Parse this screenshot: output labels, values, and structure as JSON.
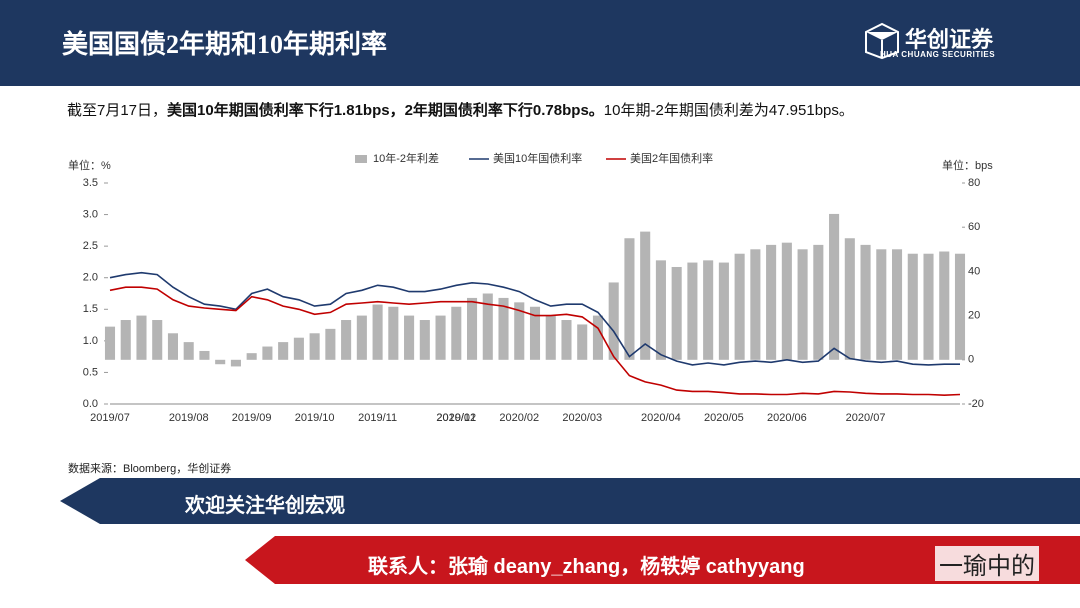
{
  "header": {
    "title": "美国国债2年期和10年期利率",
    "logo": "华创证券",
    "logo_en": "HUA CHUANG SECURITIES"
  },
  "summary": [
    "截至7月17日，",
    "美国10年期国债利率下行1.81bps，2年期国债利率下行0.78bps。",
    "10年期-2年期国债利差为47.951bps。"
  ],
  "chart_data": {
    "type": "bar-line",
    "ylabel": "单位：%",
    "y2label": "单位：bps",
    "categories": [
      "2019/07",
      null,
      null,
      null,
      null,
      "2019/08",
      null,
      null,
      null,
      "2019/09",
      null,
      null,
      null,
      "2019/10",
      null,
      null,
      null,
      "2019/11",
      null,
      null,
      null,
      null,
      "2020/01",
      null,
      null,
      null,
      "2020/02",
      null,
      null,
      null,
      "2020/03",
      null,
      null,
      null,
      null,
      "2020/04",
      null,
      null,
      null,
      "2020/05",
      null,
      null,
      null,
      "2020/06",
      null,
      null,
      null,
      null,
      "2020/07",
      null,
      null,
      null,
      null,
      null,
      null
    ],
    "x_extra_labels": [
      {
        "label": "2019/12",
        "index": 22
      }
    ],
    "series": [
      {
        "name": "10年-2年利差",
        "color": "#b4b4b4",
        "kind": "bar",
        "axis": "y2",
        "values": [
          15,
          18,
          20,
          18,
          12,
          8,
          4,
          -2,
          -3,
          3,
          6,
          8,
          10,
          12,
          14,
          18,
          20,
          25,
          24,
          20,
          18,
          20,
          24,
          28,
          30,
          28,
          26,
          24,
          20,
          18,
          16,
          20,
          35,
          55,
          58,
          45,
          42,
          44,
          45,
          44,
          48,
          50,
          52,
          53,
          50,
          52,
          66,
          55,
          52,
          50,
          50,
          48,
          48,
          49,
          48
        ]
      },
      {
        "name": "美国10年国债利率",
        "color": "#1f3a6e",
        "kind": "line",
        "values": [
          2.0,
          2.05,
          2.08,
          2.05,
          1.85,
          1.7,
          1.58,
          1.55,
          1.5,
          1.75,
          1.82,
          1.7,
          1.65,
          1.55,
          1.58,
          1.75,
          1.8,
          1.88,
          1.85,
          1.78,
          1.78,
          1.82,
          1.88,
          1.92,
          1.9,
          1.85,
          1.78,
          1.65,
          1.55,
          1.58,
          1.58,
          1.45,
          1.15,
          0.75,
          0.95,
          0.78,
          0.68,
          0.62,
          0.65,
          0.62,
          0.66,
          0.68,
          0.66,
          0.7,
          0.66,
          0.68,
          0.88,
          0.72,
          0.68,
          0.66,
          0.68,
          0.63,
          0.62,
          0.63,
          0.63
        ]
      },
      {
        "name": "美国2年国债利率",
        "color": "#c00000",
        "kind": "line",
        "values": [
          1.8,
          1.85,
          1.85,
          1.82,
          1.65,
          1.55,
          1.52,
          1.5,
          1.48,
          1.7,
          1.65,
          1.55,
          1.5,
          1.42,
          1.45,
          1.58,
          1.6,
          1.62,
          1.6,
          1.58,
          1.6,
          1.62,
          1.62,
          1.62,
          1.58,
          1.55,
          1.48,
          1.4,
          1.4,
          1.42,
          1.38,
          1.2,
          0.75,
          0.45,
          0.35,
          0.3,
          0.22,
          0.2,
          0.2,
          0.18,
          0.16,
          0.16,
          0.15,
          0.15,
          0.17,
          0.16,
          0.2,
          0.19,
          0.17,
          0.16,
          0.16,
          0.15,
          0.15,
          0.14,
          0.15
        ]
      }
    ],
    "ylim": [
      0,
      3.5
    ],
    "yticks": [
      {
        "value": 0,
        "label": "0.0"
      },
      0.5,
      {
        "value": 1,
        "label": "1.0"
      },
      1.5,
      {
        "value": 2,
        "label": "2.0"
      },
      2.5,
      {
        "value": 3,
        "label": "3.0"
      },
      3.5
    ],
    "y2lim": [
      -20,
      80
    ],
    "y2ticks": [
      -20,
      0,
      20,
      40,
      60,
      80
    ],
    "grid": false,
    "legend": "top",
    "source": "数据来源：Bloomberg，华创证券"
  },
  "footer": {
    "banner": "欢迎关注华创宏观",
    "contact": "联系人：张瑜 deany_zhang，杨轶婷 cathyyang",
    "watermark": "一瑜中的"
  }
}
